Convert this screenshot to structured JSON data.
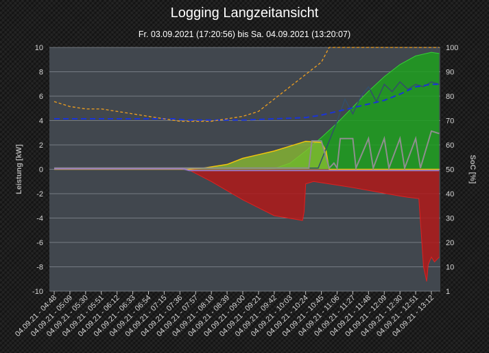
{
  "header": {
    "title": "Logging Langzeitansicht",
    "subtitle": "Fr. 03.09.2021 (17:20:56) bis Sa. 04.09.2021 (13:20:07)"
  },
  "chart_data": {
    "type": "area",
    "ylabel_left": "Leistung [kW]",
    "ylabel_right": "SoC [%]",
    "ylim_left": [
      -10,
      10
    ],
    "ylim_right": [
      1,
      100
    ],
    "yticks_left": [
      "10",
      "8",
      "6",
      "4",
      "2",
      "0",
      "-2",
      "-4",
      "-6",
      "-8",
      "-10"
    ],
    "yticks_right": [
      "100",
      "90",
      "80",
      "70",
      "60",
      "50",
      "40",
      "30",
      "20",
      "10",
      "1"
    ],
    "categories": [
      "04.09.21 - 04:48",
      "04.09.21 - 05:09",
      "04.09.21 - 05:30",
      "04.09.21 - 05:51",
      "04.09.21 - 06:12",
      "04.09.21 - 06:33",
      "04.09.21 - 06:54",
      "04.09.21 - 07:15",
      "04.09.21 - 07:36",
      "04.09.21 - 07:57",
      "04.09.21 - 08:18",
      "04.09.21 - 08:39",
      "04.09.21 - 09:00",
      "04.09.21 - 09:21",
      "04.09.21 - 09:42",
      "04.09.21 - 10:03",
      "04.09.21 - 10:24",
      "04.09.21 - 10:45",
      "04.09.21 - 11:06",
      "04.09.21 - 11:27",
      "04.09.21 - 11:48",
      "04.09.21 - 12:09",
      "04.09.21 - 12:30",
      "04.09.21 - 12:51",
      "04.09.21 - 13:12"
    ],
    "grid": true,
    "colors": {
      "pv": "#1ea01e",
      "pv_line": "#35d235",
      "battery": "#b01a1a",
      "battery_line": "#e02020",
      "consumption": "#8cbf30",
      "consumption_line": "#f2c60c",
      "soc": "#f0a020",
      "house": "#334f6a",
      "grey": "#8f8f8f",
      "purple": "#9a7ac0",
      "blue": "#1a34d8",
      "plot_bg": "#41474e",
      "grid": "#9aa0a8"
    },
    "series": [
      {
        "key": "pv",
        "x": [
          0,
          13,
          14,
          15,
          16,
          17,
          18,
          19,
          20,
          21,
          22,
          23,
          24,
          24.5
        ],
        "values": [
          0,
          0,
          0.05,
          0.5,
          1.5,
          2.6,
          3.8,
          5.1,
          6.4,
          7.6,
          8.6,
          9.3,
          9.6,
          9.5
        ]
      },
      {
        "key": "battery",
        "x": [
          0,
          8.5,
          10,
          12,
          14,
          15.8,
          15.9,
          16,
          16.5,
          17,
          19,
          22,
          22.5,
          23.2,
          23.5,
          23.7,
          23.8,
          24,
          24.2,
          24.5
        ],
        "values": [
          0,
          0,
          -1,
          -2.5,
          -3.8,
          -4.2,
          -3.5,
          -1.2,
          -1,
          -1.1,
          -1.5,
          -2.2,
          -2.3,
          -2.4,
          -8,
          -9.2,
          -7.8,
          -7.2,
          -7.6,
          -7.2
        ]
      },
      {
        "key": "consumption",
        "x": [
          0,
          8.5,
          9.5,
          11,
          12,
          13,
          14,
          15,
          16,
          17,
          17.3,
          17.5,
          24.5
        ],
        "values": [
          0,
          0,
          0.1,
          0.4,
          0.9,
          1.2,
          1.5,
          1.9,
          2.3,
          2.2,
          1.5,
          0,
          0
        ]
      },
      {
        "key": "soc",
        "x": [
          0,
          1,
          2,
          3,
          4,
          5,
          6,
          7,
          8,
          9,
          10,
          11,
          12,
          13,
          14,
          15,
          16,
          17,
          17.5,
          24.5
        ],
        "values": [
          78,
          76,
          75,
          75,
          74,
          73,
          72,
          71,
          70,
          70,
          70,
          71,
          72,
          74,
          79,
          84,
          89,
          94,
          100,
          100
        ]
      },
      {
        "key": "house",
        "x": [
          0,
          16.8,
          17.5,
          18,
          18.5,
          19,
          19.5,
          20,
          20.5,
          21,
          21.5,
          22,
          22.5,
          23,
          23.5,
          24,
          24.5
        ],
        "values": [
          51,
          51,
          62,
          70,
          79,
          73,
          80,
          84,
          78,
          85,
          82,
          86,
          83,
          85,
          84,
          86,
          85
        ]
      },
      {
        "key": "grey",
        "x": [
          0,
          16.2,
          16.4,
          17,
          17.5,
          17.8,
          18,
          18.2,
          19,
          19.2,
          20,
          20.3,
          21,
          21.3,
          22,
          22.3,
          23,
          23.3,
          24,
          24.5
        ],
        "values": [
          51,
          51,
          62,
          62,
          51,
          53,
          51,
          63,
          63,
          51,
          63,
          51,
          63,
          51,
          63,
          51,
          63,
          51,
          66,
          65
        ]
      },
      {
        "key": "purple",
        "x": [
          0,
          8.2,
          8.6,
          24.5
        ],
        "values": [
          50.7,
          50.7,
          50,
          50
        ]
      },
      {
        "key": "blue",
        "x": [
          0,
          7.6,
          8.5,
          12,
          14,
          16,
          17,
          18,
          19,
          20,
          21,
          22,
          23,
          24,
          24.5
        ],
        "values": [
          71,
          71,
          70.5,
          70.5,
          71,
          71.5,
          72.5,
          74,
          75.5,
          77,
          78.5,
          81,
          84,
          85,
          85
        ]
      }
    ]
  }
}
